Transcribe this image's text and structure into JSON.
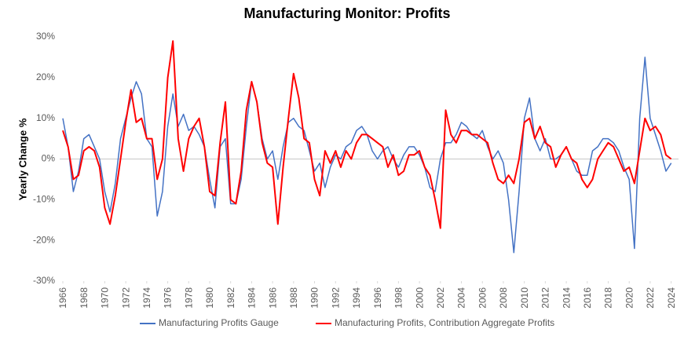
{
  "chart_data": {
    "type": "line",
    "title": "Manufacturing Monitor: Profits",
    "y_label": "Yearly Change %",
    "x": [
      1966.0,
      1966.5,
      1967.0,
      1967.5,
      1968.0,
      1968.5,
      1969.0,
      1969.5,
      1970.0,
      1970.5,
      1971.0,
      1971.5,
      1972.0,
      1972.5,
      1973.0,
      1973.5,
      1974.0,
      1974.5,
      1975.0,
      1975.5,
      1976.0,
      1976.5,
      1977.0,
      1977.5,
      1978.0,
      1978.5,
      1979.0,
      1979.5,
      1980.0,
      1980.5,
      1981.0,
      1981.5,
      1982.0,
      1982.5,
      1983.0,
      1983.5,
      1984.0,
      1984.5,
      1985.0,
      1985.5,
      1986.0,
      1986.5,
      1987.0,
      1987.5,
      1988.0,
      1988.5,
      1989.0,
      1989.5,
      1990.0,
      1990.5,
      1991.0,
      1991.5,
      1992.0,
      1992.5,
      1993.0,
      1993.5,
      1994.0,
      1994.5,
      1995.0,
      1995.5,
      1996.0,
      1996.5,
      1997.0,
      1997.5,
      1998.0,
      1998.5,
      1999.0,
      1999.5,
      2000.0,
      2000.5,
      2001.0,
      2001.5,
      2002.0,
      2002.5,
      2003.0,
      2003.5,
      2004.0,
      2004.5,
      2005.0,
      2005.5,
      2006.0,
      2006.5,
      2007.0,
      2007.5,
      2008.0,
      2008.5,
      2009.0,
      2009.5,
      2010.0,
      2010.5,
      2011.0,
      2011.5,
      2012.0,
      2012.5,
      2013.0,
      2013.5,
      2014.0,
      2014.5,
      2015.0,
      2015.5,
      2016.0,
      2016.5,
      2017.0,
      2017.5,
      2018.0,
      2018.5,
      2019.0,
      2019.5,
      2020.0,
      2020.5,
      2021.0,
      2021.5,
      2022.0,
      2022.5,
      2023.0,
      2023.5,
      2024.0
    ],
    "series": [
      {
        "name": "Manufacturing Profits Gauge",
        "color": "#4472c4",
        "values": [
          10,
          3,
          -8,
          -3,
          5,
          6,
          3,
          0,
          -8,
          -13,
          -6,
          5,
          10,
          15,
          19,
          16,
          5,
          3,
          -14,
          -8,
          8,
          16,
          8,
          11,
          7,
          8,
          6,
          3,
          -5,
          -12,
          3,
          5,
          -11,
          -11,
          -5,
          8,
          19,
          14,
          5,
          0,
          2,
          -5,
          3,
          9,
          10,
          8,
          7,
          2,
          -3,
          -1,
          -7,
          -2,
          1,
          0,
          3,
          4,
          7,
          8,
          6,
          2,
          0,
          2,
          3,
          0,
          -2,
          1,
          3,
          3,
          1,
          -2,
          -7,
          -8,
          0,
          4,
          4,
          6,
          9,
          8,
          6,
          5,
          7,
          3,
          0,
          2,
          -1,
          -10,
          -23,
          -8,
          10,
          15,
          5,
          2,
          5,
          0,
          0,
          1,
          3,
          0,
          -3,
          -4,
          -4,
          2,
          3,
          5,
          5,
          4,
          2,
          -2,
          -5,
          -22,
          10,
          25,
          10,
          6,
          2,
          -3,
          -1
        ]
      },
      {
        "name": "Manufacturing Profits, Contribution Aggregate Profits",
        "color": "#ff0000",
        "values": [
          7,
          3,
          -5,
          -4,
          2,
          3,
          2,
          -2,
          -12,
          -16,
          -9,
          0,
          9,
          17,
          9,
          10,
          5,
          5,
          -5,
          0,
          20,
          29,
          5,
          -3,
          5,
          8,
          10,
          3,
          -8,
          -9,
          4,
          14,
          -10,
          -11,
          -3,
          12,
          19,
          14,
          4,
          -1,
          -2,
          -16,
          -2,
          10,
          21,
          15,
          5,
          4,
          -5,
          -9,
          2,
          -1,
          2,
          -2,
          2,
          0,
          4,
          6,
          6,
          5,
          4,
          3,
          -2,
          1,
          -4,
          -3,
          1,
          1,
          2,
          -2,
          -4,
          -10,
          -17,
          12,
          6,
          4,
          7,
          7,
          6,
          6,
          5,
          4,
          -1,
          -5,
          -6,
          -4,
          -6,
          0,
          9,
          10,
          5,
          8,
          4,
          3,
          -2,
          1,
          3,
          0,
          -1,
          -5,
          -7,
          -5,
          0,
          2,
          4,
          3,
          0,
          -3,
          -2,
          -6,
          2,
          10,
          7,
          8,
          6,
          1,
          0
        ]
      }
    ],
    "xlim": [
      1965.7,
      2024.7
    ],
    "xticks": [
      1966,
      1968,
      1970,
      1972,
      1974,
      1976,
      1978,
      1980,
      1982,
      1984,
      1986,
      1988,
      1990,
      1992,
      1994,
      1996,
      1998,
      2000,
      2002,
      2004,
      2006,
      2008,
      2010,
      2012,
      2014,
      2016,
      2018,
      2020,
      2022,
      2024
    ],
    "ylim": [
      -30,
      30
    ],
    "yticks": [
      {
        "value": -30,
        "label": "-30%"
      },
      {
        "value": -20,
        "label": "-20%"
      },
      {
        "value": -10,
        "label": "-10%"
      },
      {
        "value": 0,
        "label": "0%"
      },
      {
        "value": 10,
        "label": "10%"
      },
      {
        "value": 20,
        "label": "20%"
      },
      {
        "value": 30,
        "label": "30%"
      }
    ],
    "legend": "bottom"
  }
}
